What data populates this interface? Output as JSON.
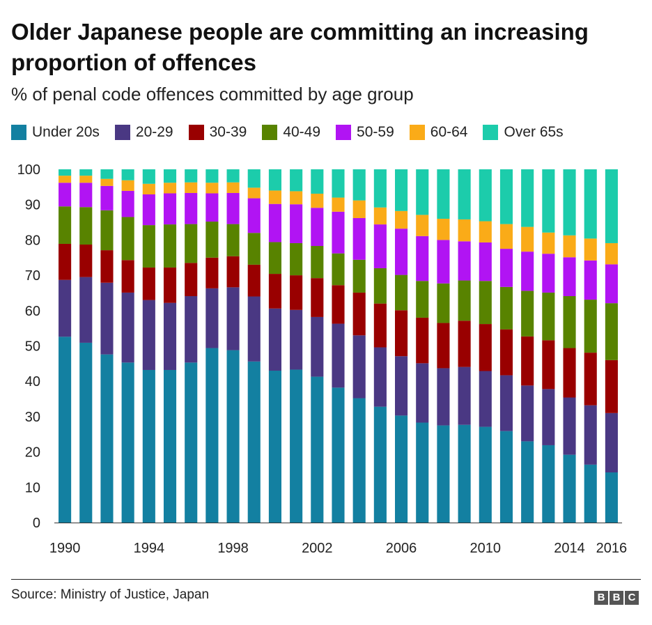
{
  "title": "Older Japanese people are committing an increasing proportion of offences",
  "subtitle": "% of penal code offences committed by age group",
  "source": "Source: Ministry of Justice, Japan",
  "logo": [
    "B",
    "B",
    "C"
  ],
  "chart_data": {
    "type": "bar",
    "stacked": true,
    "categories": [
      "1990",
      "1991",
      "1992",
      "1993",
      "1994",
      "1995",
      "1996",
      "1997",
      "1998",
      "1999",
      "2000",
      "2001",
      "2002",
      "2003",
      "2004",
      "2005",
      "2006",
      "2007",
      "2008",
      "2009",
      "2010",
      "2011",
      "2012",
      "2013",
      "2014",
      "2015",
      "2016"
    ],
    "x_tick_labels": [
      "1990",
      "",
      "",
      "",
      "1994",
      "",
      "",
      "",
      "1998",
      "",
      "",
      "",
      "2002",
      "",
      "",
      "",
      "2006",
      "",
      "",
      "",
      "2010",
      "",
      "",
      "",
      "2014",
      "",
      "2016"
    ],
    "ylim": [
      0,
      100
    ],
    "y_ticks": [
      0,
      10,
      20,
      30,
      40,
      50,
      60,
      70,
      80,
      90,
      100
    ],
    "grid": false,
    "legend_position": "top",
    "series": [
      {
        "name": "Under 20s",
        "color": "#1380A1",
        "values": [
          52.6,
          50.9,
          47.6,
          45.3,
          43.2,
          43.2,
          45.3,
          49.4,
          48.8,
          45.6,
          43.0,
          43.3,
          41.3,
          38.2,
          35.2,
          32.8,
          30.3,
          28.3,
          27.5,
          27.7,
          27.1,
          25.9,
          23.0,
          21.9,
          19.2,
          16.4,
          14.2
        ]
      },
      {
        "name": "20-29",
        "color": "#4A3883",
        "values": [
          16.1,
          18.6,
          20.3,
          19.8,
          19.8,
          19.0,
          18.8,
          16.9,
          17.8,
          18.4,
          17.6,
          16.9,
          16.9,
          18.1,
          17.8,
          16.8,
          16.8,
          16.8,
          16.2,
          16.4,
          15.8,
          15.8,
          15.8,
          15.9,
          16.2,
          16.8,
          16.8
        ]
      },
      {
        "name": "30-39",
        "color": "#990000",
        "values": [
          10.2,
          9.2,
          9.2,
          9.2,
          9.2,
          10.0,
          9.4,
          8.7,
          8.8,
          9.0,
          9.8,
          9.8,
          11.0,
          10.9,
          12.1,
          12.4,
          13.0,
          12.9,
          12.8,
          13.1,
          13.3,
          13.0,
          13.9,
          13.8,
          14.0,
          14.9,
          15.0
        ]
      },
      {
        "name": "40-49",
        "color": "#588300",
        "values": [
          10.6,
          10.6,
          11.3,
          12.2,
          12.0,
          12.2,
          11.0,
          10.2,
          9.1,
          9.0,
          9.0,
          9.1,
          9.1,
          9.0,
          9.3,
          10.0,
          10.0,
          10.4,
          11.2,
          11.4,
          12.2,
          12.0,
          12.9,
          13.5,
          14.7,
          15.0,
          16.1
        ]
      },
      {
        "name": "50-59",
        "color": "#B114F3",
        "values": [
          6.7,
          6.9,
          6.9,
          7.4,
          8.7,
          8.8,
          8.8,
          8.0,
          8.8,
          9.8,
          10.8,
          11.0,
          10.8,
          11.8,
          11.8,
          12.4,
          13.1,
          12.7,
          12.3,
          11.1,
          10.9,
          10.8,
          11.1,
          11.0,
          11.0,
          11.1,
          11.0
        ]
      },
      {
        "name": "60-64",
        "color": "#FAAB18",
        "values": [
          2.0,
          2.0,
          2.0,
          3.0,
          3.0,
          3.0,
          3.0,
          3.0,
          3.0,
          3.0,
          3.8,
          3.7,
          4.0,
          4.0,
          5.0,
          4.8,
          5.0,
          6.0,
          6.0,
          6.2,
          6.0,
          7.0,
          7.0,
          6.0,
          6.2,
          6.2,
          6.0
        ]
      },
      {
        "name": "Over 65s",
        "color": "#1CCCAB",
        "values": [
          1.8,
          1.8,
          2.7,
          3.1,
          4.1,
          3.8,
          3.7,
          3.8,
          3.7,
          5.2,
          6.0,
          6.2,
          6.9,
          8.0,
          8.8,
          10.8,
          11.8,
          12.9,
          14.0,
          14.2,
          14.7,
          15.5,
          16.3,
          17.9,
          18.7,
          19.6,
          20.9
        ]
      }
    ]
  }
}
